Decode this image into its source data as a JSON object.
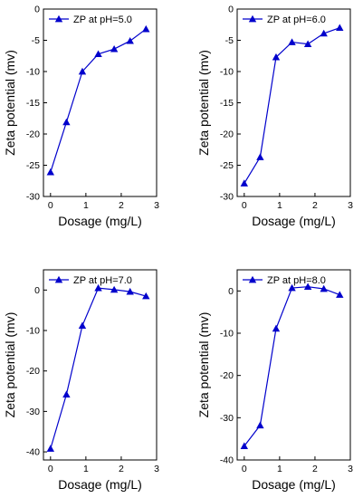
{
  "series_color": "#0000CC",
  "chart_data": [
    {
      "type": "line",
      "xlabel": "Dosage (mg/L)",
      "ylabel": "Zeta potential (mv)",
      "xlim": [
        -0.2,
        3.0
      ],
      "ylim": [
        -30,
        0
      ],
      "xticks": [
        0,
        1,
        2,
        3
      ],
      "yticks": [
        0,
        -5,
        -10,
        -15,
        -20,
        -25,
        -30
      ],
      "legend_position": "top-left",
      "series": [
        {
          "name": "ZP at pH=5.0",
          "x": [
            0,
            0.45,
            0.9,
            1.35,
            1.8,
            2.25,
            2.7
          ],
          "y": [
            -26.1,
            -18.1,
            -10.0,
            -7.2,
            -6.4,
            -5.1,
            -3.2
          ]
        }
      ]
    },
    {
      "type": "line",
      "xlabel": "Dosage (mg/L)",
      "ylabel": "Zeta potential (mv)",
      "xlim": [
        -0.2,
        3.0
      ],
      "ylim": [
        -30,
        0
      ],
      "xticks": [
        0,
        1,
        2,
        3
      ],
      "yticks": [
        0,
        -5,
        -10,
        -15,
        -20,
        -25,
        -30
      ],
      "legend_position": "top-left",
      "series": [
        {
          "name": "ZP at pH=6.0",
          "x": [
            0,
            0.45,
            0.9,
            1.35,
            1.8,
            2.25,
            2.7
          ],
          "y": [
            -27.9,
            -23.7,
            -7.7,
            -5.3,
            -5.6,
            -3.9,
            -3.0
          ]
        }
      ]
    },
    {
      "type": "line",
      "xlabel": "Dosage (mg/L)",
      "ylabel": "Zeta potential (mv)",
      "xlim": [
        -0.2,
        3.0
      ],
      "ylim": [
        -42,
        5
      ],
      "xticks": [
        0,
        1,
        2,
        3
      ],
      "yticks": [
        0,
        -10,
        -20,
        -30,
        -40
      ],
      "legend_position": "top-left",
      "series": [
        {
          "name": "ZP at pH=7.0",
          "x": [
            0,
            0.45,
            0.9,
            1.35,
            1.8,
            2.25,
            2.7
          ],
          "y": [
            -39.2,
            -25.8,
            -8.8,
            0.5,
            0.1,
            -0.4,
            -1.5
          ]
        }
      ]
    },
    {
      "type": "line",
      "xlabel": "Dosage (mg/L)",
      "ylabel": "Zeta potential (mv)",
      "xlim": [
        -0.2,
        3.0
      ],
      "ylim": [
        -40,
        5
      ],
      "xticks": [
        0,
        1,
        2,
        3
      ],
      "yticks": [
        0,
        -10,
        -20,
        -30,
        -40
      ],
      "legend_position": "top-left",
      "series": [
        {
          "name": "ZP at pH=8.0",
          "x": [
            0,
            0.45,
            0.9,
            1.35,
            1.8,
            2.25,
            2.7
          ],
          "y": [
            -36.7,
            -31.8,
            -8.9,
            0.7,
            1.0,
            0.5,
            -0.9
          ]
        }
      ]
    }
  ]
}
